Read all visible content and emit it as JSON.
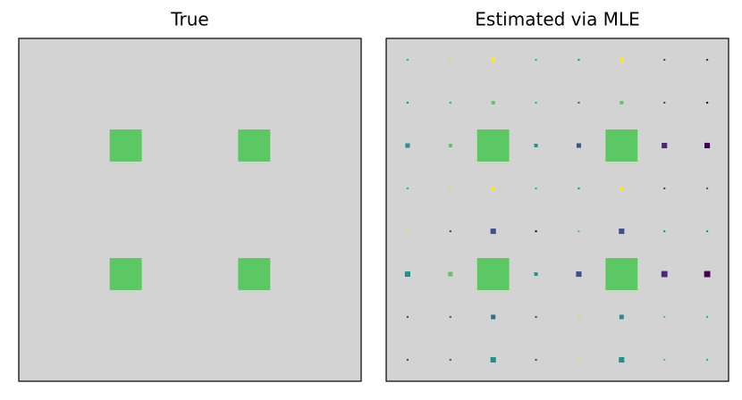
{
  "chart_data": [
    {
      "type": "hinton",
      "title": "True",
      "color": "#5cc863",
      "values": [
        [
          0,
          0,
          0,
          0,
          0,
          0,
          0,
          0
        ],
        [
          0,
          0,
          0,
          0,
          0,
          0,
          0,
          0
        ],
        [
          0,
          0,
          1,
          0,
          0,
          1,
          0,
          0
        ],
        [
          0,
          0,
          0,
          0,
          0,
          0,
          0,
          0
        ],
        [
          0,
          0,
          0,
          0,
          0,
          0,
          0,
          0
        ],
        [
          0,
          0,
          1,
          0,
          0,
          1,
          0,
          0
        ],
        [
          0,
          0,
          0,
          0,
          0,
          0,
          0,
          0
        ],
        [
          0,
          0,
          0,
          0,
          0,
          0,
          0,
          0
        ]
      ]
    },
    {
      "type": "hinton",
      "title": "Estimated via MLE",
      "values": [
        [
          0.06,
          0.06,
          0.14,
          0.06,
          0.06,
          0.14,
          0.06,
          0.06
        ],
        [
          0.06,
          0.06,
          0.11,
          0.06,
          0.06,
          0.11,
          0.06,
          0.06
        ],
        [
          0.14,
          0.11,
          1,
          0.11,
          0.14,
          1,
          0.17,
          0.17
        ],
        [
          0.06,
          0.06,
          0.11,
          0.06,
          0.06,
          0.11,
          0.06,
          0.06
        ],
        [
          0.06,
          0.06,
          0.17,
          0.06,
          0.06,
          0.17,
          0.06,
          0.06
        ],
        [
          0.17,
          0.14,
          1,
          0.11,
          0.17,
          1,
          0.19,
          0.19
        ],
        [
          0.06,
          0.06,
          0.14,
          0.06,
          0.06,
          0.14,
          0.06,
          0.06
        ],
        [
          0.06,
          0.06,
          0.17,
          0.06,
          0.06,
          0.17,
          0.06,
          0.06
        ]
      ],
      "colors": [
        [
          "#35b779",
          "#d8e219",
          "#fde725",
          "#35b779",
          "#21918c",
          "#fde725",
          "#3b528b",
          "#472d7b"
        ],
        [
          "#21918c",
          "#35b779",
          "#5cc863",
          "#35b779",
          "#2c728e",
          "#5cc863",
          "#3b528b",
          "#440154"
        ],
        [
          "#21918c",
          "#5cc863",
          "#5cc863",
          "#21918c",
          "#3b528b",
          "#5cc863",
          "#482878",
          "#440154"
        ],
        [
          "#35b779",
          "#d8e219",
          "#fde725",
          "#35b779",
          "#21918c",
          "#fde725",
          "#3b528b",
          "#31688e"
        ],
        [
          "#fde725",
          "#3b528b",
          "#3b528b",
          "#440154",
          "#5cc863",
          "#3b528b",
          "#21918c",
          "#21918c"
        ],
        [
          "#21918c",
          "#5cc863",
          "#5cc863",
          "#21918c",
          "#3b528b",
          "#5cc863",
          "#482878",
          "#440154"
        ],
        [
          "#3b528b",
          "#2c728e",
          "#2c728e",
          "#3b528b",
          "#d8e219",
          "#21918c",
          "#5cc863",
          "#35b779"
        ],
        [
          "#3b528b",
          "#2c728e",
          "#21918c",
          "#3b528b",
          "#fde725",
          "#21918c",
          "#5cc863",
          "#35b779"
        ]
      ]
    }
  ]
}
